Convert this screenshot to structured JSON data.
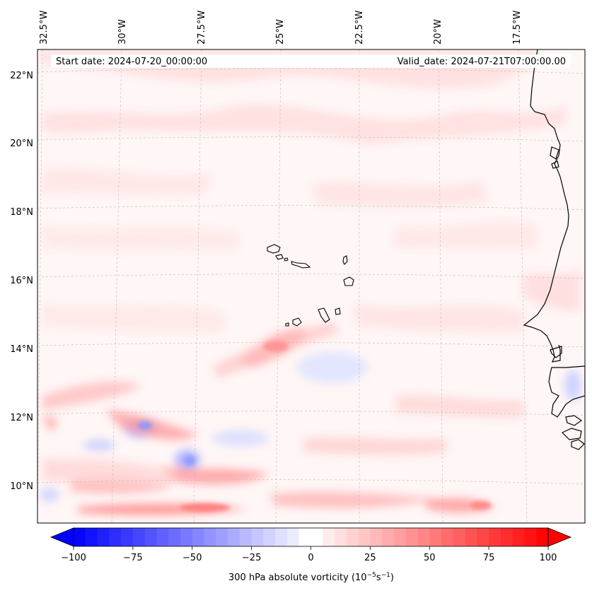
{
  "map": {
    "header": {
      "start_date": "Start date: 2024-07-20_00:00:00",
      "valid_date": "Valid_date: 2024-07-21T07:00:00.00"
    },
    "lon_labels": [
      "32.5°W",
      "30°W",
      "27.5°W",
      "25°W",
      "22.5°W",
      "20°W",
      "17.5°W"
    ],
    "lat_labels": [
      "22°N",
      "20°N",
      "18°N",
      "16°N",
      "14°N",
      "12°N",
      "10°N"
    ],
    "colorbar": {
      "label": "300 hPa absolute vorticity (10",
      "label_exp1": "−5",
      "label_mid": "s",
      "label_exp2": "−1",
      "label_end": ")",
      "min": -100,
      "max": 100,
      "ticks": [
        "−100",
        "−75",
        "−50",
        "−25",
        "0",
        "25",
        "50",
        "75",
        "100"
      ],
      "low_color": "#0000ff",
      "mid_color": "#ffffff",
      "high_color": "#ff0000"
    }
  }
}
